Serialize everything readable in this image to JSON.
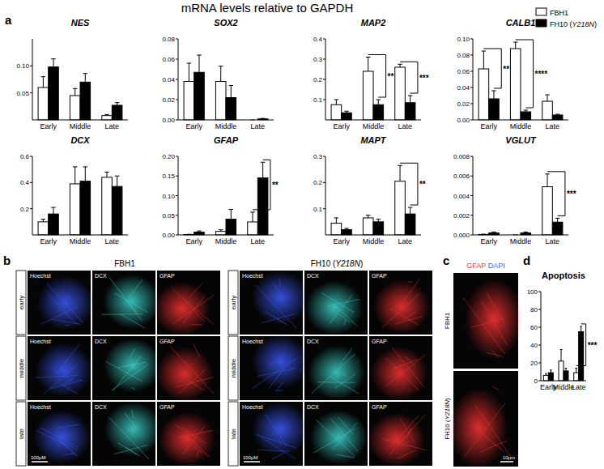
{
  "figure_title": "mRNA levels relative to GAPDH",
  "panel_labels": [
    "a",
    "b",
    "c",
    "d"
  ],
  "chart_data": [
    {
      "type": "bar",
      "title": "NES",
      "categories": [
        "Early",
        "Middle",
        "Late"
      ],
      "series": [
        {
          "name": "FBH1",
          "color": "#ffffff",
          "values": [
            0.06,
            0.045,
            0.008
          ],
          "errors": [
            0.02,
            0.013,
            0.002
          ]
        },
        {
          "name": "FH10 (Y218N)",
          "color": "#000000",
          "values": [
            0.098,
            0.07,
            0.027
          ],
          "errors": [
            0.015,
            0.016,
            0.005
          ]
        }
      ],
      "ylim": [
        0,
        0.15
      ],
      "yticks": [
        0.05,
        {
          "value": 0.1,
          "label": "0.10"
        }
      ]
    },
    {
      "type": "bar",
      "title": "SOX2",
      "categories": [
        "Early",
        "Middle",
        "Late"
      ],
      "series": [
        {
          "name": "FBH1",
          "color": "#ffffff",
          "values": [
            0.038,
            0.038,
            0
          ],
          "errors": [
            0.018,
            0.015,
            0
          ]
        },
        {
          "name": "FH10 (Y218N)",
          "color": "#000000",
          "values": [
            0.047,
            0.022,
            0.001
          ],
          "errors": [
            0.017,
            0.012,
            0.0005
          ]
        }
      ],
      "ylim": [
        0,
        0.08
      ],
      "yticks": [
        {
          "value": 0,
          "label": "0.00"
        },
        0.02,
        0.04,
        0.06,
        0.08
      ]
    },
    {
      "type": "bar",
      "title": "MAP2",
      "categories": [
        "Early",
        "Middle",
        "Late"
      ],
      "series": [
        {
          "name": "FBH1",
          "color": "#ffffff",
          "values": [
            0.075,
            0.24,
            0.26
          ],
          "errors": [
            0.025,
            0.07,
            0.015
          ]
        },
        {
          "name": "FH10 (Y218N)",
          "color": "#000000",
          "values": [
            0.035,
            0.075,
            0.085
          ],
          "errors": [
            0.008,
            0.025,
            0.035
          ]
        }
      ],
      "ylim": [
        0,
        0.4
      ],
      "yticks": [
        0.1,
        0.2,
        0.3,
        0.4
      ],
      "annotations": [
        {
          "text": "**",
          "category": "Middle"
        },
        {
          "text": "***",
          "category": "Late"
        }
      ]
    },
    {
      "type": "bar",
      "title": "CALB1",
      "categories": [
        "Early",
        "Middle",
        "Late"
      ],
      "legend": "upper right",
      "series": [
        {
          "name": "FBH1",
          "color": "#ffffff",
          "values": [
            0.063,
            0.088,
            0.023
          ],
          "errors": [
            0.022,
            0.008,
            0.008
          ]
        },
        {
          "name": "FH10 (Y218N)",
          "color": "#000000",
          "values": [
            0.026,
            0.01,
            0.006
          ],
          "errors": [
            0.01,
            0.002,
            0.001
          ]
        }
      ],
      "ylim": [
        0,
        0.1
      ],
      "yticks": [
        {
          "value": 0,
          "label": "0.00"
        },
        0.02,
        0.04,
        0.06,
        0.08,
        {
          "value": 0.1,
          "label": "0.10"
        }
      ],
      "annotations": [
        {
          "text": "**",
          "category": "Early"
        },
        {
          "text": "****",
          "category": "Middle"
        }
      ]
    },
    {
      "type": "bar",
      "title": "DCX",
      "categories": [
        "Early",
        "Middle",
        "Late"
      ],
      "series": [
        {
          "name": "FBH1",
          "color": "#ffffff",
          "values": [
            0.1,
            0.39,
            0.44
          ],
          "errors": [
            0.02,
            0.13,
            0.04
          ]
        },
        {
          "name": "FH10 (Y218N)",
          "color": "#000000",
          "values": [
            0.16,
            0.41,
            0.37
          ],
          "errors": [
            0.05,
            0.11,
            0.08
          ]
        }
      ],
      "ylim": [
        0,
        0.6
      ],
      "yticks": [
        0.2,
        0.4,
        0.6
      ]
    },
    {
      "type": "bar",
      "title": "GFAP",
      "categories": [
        "Early",
        "Middle",
        "Late"
      ],
      "series": [
        {
          "name": "FBH1",
          "color": "#ffffff",
          "values": [
            0.001,
            0.009,
            0.033
          ],
          "errors": [
            0.0005,
            0.004,
            0.025
          ]
        },
        {
          "name": "FH10 (Y218N)",
          "color": "#000000",
          "values": [
            0.007,
            0.04,
            0.145
          ],
          "errors": [
            0.003,
            0.025,
            0.04
          ]
        }
      ],
      "ylim": [
        0,
        0.2
      ],
      "yticks": [
        {
          "value": 0,
          "label": "0.00"
        },
        0.05,
        {
          "value": 0.1,
          "label": "0.10"
        },
        0.15,
        {
          "value": 0.2,
          "label": "0.20"
        }
      ],
      "annotations": [
        {
          "text": "**",
          "category": "Late"
        }
      ]
    },
    {
      "type": "bar",
      "title": "MAPT",
      "categories": [
        "Early",
        "Middle",
        "Late"
      ],
      "series": [
        {
          "name": "FBH1",
          "color": "#ffffff",
          "values": [
            0.045,
            0.065,
            0.205
          ],
          "errors": [
            0.02,
            0.01,
            0.06
          ]
        },
        {
          "name": "FH10 (Y218N)",
          "color": "#000000",
          "values": [
            0.02,
            0.05,
            0.08
          ],
          "errors": [
            0.005,
            0.01,
            0.025
          ]
        }
      ],
      "ylim": [
        0,
        0.3
      ],
      "yticks": [
        0.1,
        0.2,
        0.3
      ],
      "annotations": [
        {
          "text": "**",
          "category": "Late"
        }
      ]
    },
    {
      "type": "bar",
      "title": "VGLUT",
      "categories": [
        "Early",
        "Middle",
        "Late"
      ],
      "series": [
        {
          "name": "FBH1",
          "color": "#ffffff",
          "values": [
            5e-05,
            0,
            0.0049
          ],
          "errors": [
            2e-05,
            0,
            0.0013
          ]
        },
        {
          "name": "FH10 (Y218N)",
          "color": "#000000",
          "values": [
            0.0002,
            0.0002,
            0.0013
          ],
          "errors": [
            0.0001,
            0.0001,
            0.0004
          ]
        }
      ],
      "ylim": [
        0,
        0.008
      ],
      "yticks": [
        {
          "value": 0,
          "label": "0.000"
        },
        0.002,
        0.004,
        0.006,
        0.008
      ],
      "annotations": [
        {
          "text": "***",
          "category": "Late"
        }
      ]
    },
    {
      "type": "bar",
      "title": "Apoptosis",
      "categories": [
        "Early",
        "Middle",
        "Late"
      ],
      "series": [
        {
          "name": "FBH1",
          "color": "#ffffff",
          "values": [
            6,
            22,
            9
          ],
          "errors": [
            2,
            13,
            5
          ]
        },
        {
          "name": "FH10 (Y218N)",
          "color": "#000000",
          "values": [
            9,
            11,
            55
          ],
          "errors": [
            3,
            3,
            6
          ]
        }
      ],
      "ylim": [
        0,
        100
      ],
      "yticks": [
        0,
        20,
        40,
        60,
        80,
        100
      ],
      "annotations": [
        {
          "text": "***",
          "category": "Late"
        }
      ]
    }
  ],
  "image_panels": {
    "b": [
      {
        "name": "FBH1",
        "rows": [
          "early",
          "middle",
          "late"
        ],
        "channels": [
          "Hoechst",
          "DCX",
          "GFAP"
        ],
        "scale_bar": "100μM"
      },
      {
        "name": "FH10 (Y218N)",
        "rows": [
          "early",
          "middle",
          "late"
        ],
        "channels": [
          "Hoechst",
          "DCX",
          "GFAP"
        ],
        "scale_bar": "100μM"
      }
    ],
    "c": {
      "channels": [
        "GFAP",
        "DAPI"
      ],
      "rows": [
        "FBH1",
        "FH10 (Y218N)"
      ],
      "scale_bar": "10μm"
    }
  }
}
